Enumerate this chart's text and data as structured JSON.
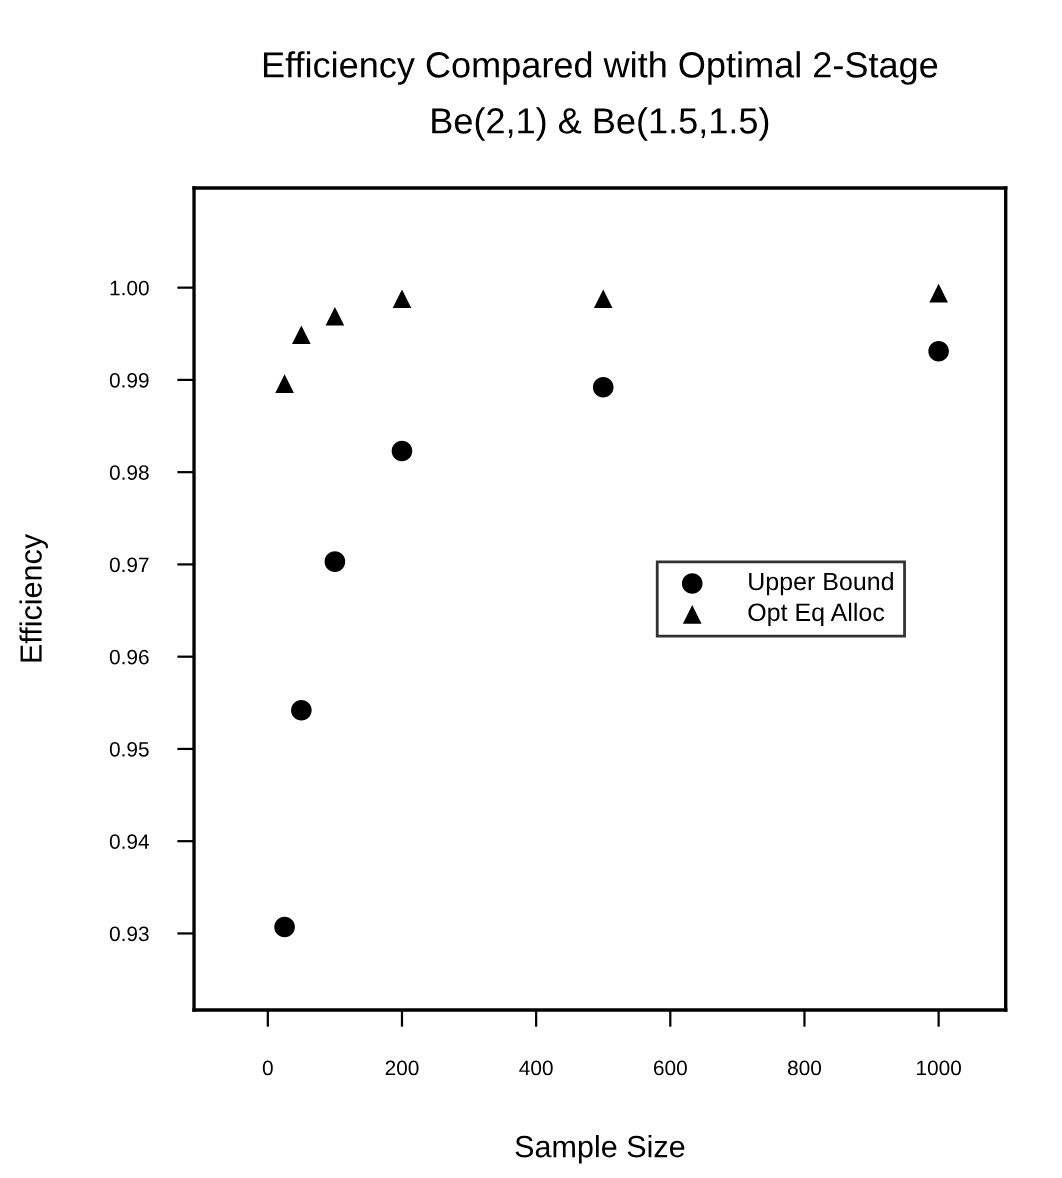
{
  "chart_data": {
    "type": "scatter",
    "title": "Efficiency Compared with Optimal 2-Stage",
    "subtitle": "Be(2,1) & Be(1.5,1.5)",
    "xlabel": "Sample Size",
    "ylabel": "Efficiency",
    "x": [
      25,
      50,
      100,
      200,
      500,
      1000
    ],
    "series": [
      {
        "name": "Upper Bound",
        "color": "#000000",
        "marker": "circle",
        "values": [
          0.9307,
          0.9542,
          0.9703,
          0.9823,
          0.9892,
          0.9931
        ]
      },
      {
        "name": "Opt Eq Alloc",
        "color": "#000000",
        "marker": "triangle",
        "values": [
          0.9896,
          0.9949,
          0.9969,
          0.9988,
          0.9988,
          0.9994
        ]
      }
    ],
    "xlim": [
      -110,
      1100
    ],
    "xticks": [
      0,
      200,
      400,
      600,
      800,
      1000
    ],
    "ylim": [
      0.9217,
      1.0108
    ],
    "yticks": [
      0.93,
      0.94,
      0.95,
      0.96,
      0.97,
      0.98,
      0.99,
      {
        "value": 1.0,
        "label": "1.00"
      }
    ],
    "grid": false,
    "legend": "right"
  }
}
